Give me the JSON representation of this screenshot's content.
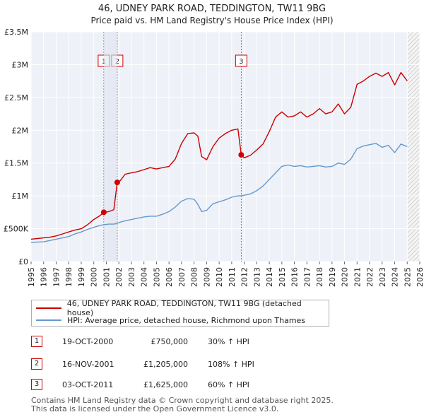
{
  "chart_data": {
    "type": "line",
    "title": "46, UDNEY PARK ROAD, TEDDINGTON, TW11 9BG",
    "subtitle": "Price paid vs. HM Land Registry's House Price Index (HPI)",
    "xlim": [
      1995,
      2026
    ],
    "ylim": [
      0,
      3500000
    ],
    "x_ticks": [
      "1995",
      "1996",
      "1997",
      "1998",
      "1999",
      "2000",
      "2001",
      "2002",
      "2003",
      "2004",
      "2005",
      "2006",
      "2007",
      "2008",
      "2009",
      "2010",
      "2011",
      "2012",
      "2013",
      "2014",
      "2015",
      "2016",
      "2017",
      "2018",
      "2019",
      "2020",
      "2021",
      "2022",
      "2023",
      "2024",
      "2025",
      "2026"
    ],
    "y_ticks": [
      {
        "value": 0,
        "label": "£0"
      },
      {
        "value": 500000,
        "label": "£500K"
      },
      {
        "value": 1000000,
        "label": "£1M"
      },
      {
        "value": 1500000,
        "label": "£1.5M"
      },
      {
        "value": 2000000,
        "label": "£2M"
      },
      {
        "value": 2500000,
        "label": "£2.5M"
      },
      {
        "value": 3000000,
        "label": "£3M"
      },
      {
        "value": 3500000,
        "label": "£3.5M"
      }
    ],
    "forecast_start": 2025.0,
    "series": [
      {
        "name": "46, UDNEY PARK ROAD, TEDDINGTON, TW11 9BG (detached house)",
        "color": "#cc0000",
        "x": [
          1995.0,
          1995.5,
          1996.0,
          1996.5,
          1997.0,
          1997.5,
          1998.0,
          1998.5,
          1999.0,
          1999.5,
          2000.0,
          2000.5,
          2000.8,
          2001.2,
          2001.6,
          2001.87,
          2002.1,
          2002.5,
          2003.0,
          2003.5,
          2004.0,
          2004.5,
          2005.0,
          2005.5,
          2006.0,
          2006.5,
          2007.0,
          2007.5,
          2008.0,
          2008.3,
          2008.6,
          2009.0,
          2009.5,
          2010.0,
          2010.5,
          2011.0,
          2011.5,
          2011.76,
          2012.0,
          2012.5,
          2013.0,
          2013.5,
          2014.0,
          2014.5,
          2015.0,
          2015.5,
          2016.0,
          2016.5,
          2017.0,
          2017.5,
          2018.0,
          2018.5,
          2019.0,
          2019.5,
          2020.0,
          2020.5,
          2021.0,
          2021.5,
          2022.0,
          2022.5,
          2023.0,
          2023.5,
          2024.0,
          2024.5,
          2025.0
        ],
        "y": [
          340000,
          350000,
          360000,
          370000,
          390000,
          420000,
          450000,
          480000,
          500000,
          560000,
          640000,
          700000,
          750000,
          760000,
          790000,
          1205000,
          1230000,
          1330000,
          1350000,
          1370000,
          1400000,
          1430000,
          1410000,
          1430000,
          1450000,
          1560000,
          1800000,
          1950000,
          1960000,
          1910000,
          1600000,
          1550000,
          1750000,
          1880000,
          1950000,
          2000000,
          2020000,
          1625000,
          1580000,
          1620000,
          1700000,
          1790000,
          1980000,
          2200000,
          2280000,
          2200000,
          2220000,
          2280000,
          2200000,
          2250000,
          2330000,
          2250000,
          2280000,
          2400000,
          2250000,
          2350000,
          2700000,
          2750000,
          2820000,
          2870000,
          2820000,
          2880000,
          2690000,
          2880000,
          2750000
        ]
      },
      {
        "name": "HPI: Average price, detached house, Richmond upon Thames",
        "color": "#6699cc",
        "x": [
          1995.0,
          1995.5,
          1996.0,
          1996.5,
          1997.0,
          1997.5,
          1998.0,
          1998.5,
          1999.0,
          1999.5,
          2000.0,
          2000.5,
          2000.8,
          2001.2,
          2001.6,
          2001.87,
          2002.1,
          2002.5,
          2003.0,
          2003.5,
          2004.0,
          2004.5,
          2005.0,
          2005.5,
          2006.0,
          2006.5,
          2007.0,
          2007.5,
          2008.0,
          2008.3,
          2008.6,
          2009.0,
          2009.5,
          2010.0,
          2010.5,
          2011.0,
          2011.5,
          2011.76,
          2012.0,
          2012.5,
          2013.0,
          2013.5,
          2014.0,
          2014.5,
          2015.0,
          2015.5,
          2016.0,
          2016.5,
          2017.0,
          2017.5,
          2018.0,
          2018.5,
          2019.0,
          2019.5,
          2020.0,
          2020.5,
          2021.0,
          2021.5,
          2022.0,
          2022.5,
          2023.0,
          2023.5,
          2024.0,
          2024.5,
          2025.0
        ],
        "y": [
          290000,
          295000,
          300000,
          320000,
          340000,
          360000,
          380000,
          420000,
          450000,
          490000,
          520000,
          550000,
          560000,
          570000,
          570000,
          580000,
          600000,
          620000,
          640000,
          660000,
          680000,
          690000,
          690000,
          720000,
          760000,
          830000,
          920000,
          960000,
          950000,
          870000,
          760000,
          780000,
          880000,
          910000,
          940000,
          980000,
          1000000,
          1000000,
          1010000,
          1030000,
          1080000,
          1150000,
          1250000,
          1350000,
          1450000,
          1470000,
          1450000,
          1460000,
          1440000,
          1450000,
          1460000,
          1440000,
          1450000,
          1500000,
          1480000,
          1560000,
          1720000,
          1760000,
          1780000,
          1800000,
          1740000,
          1770000,
          1660000,
          1790000,
          1750000
        ]
      }
    ],
    "transactions": [
      {
        "id": "1",
        "x": 2000.8,
        "y": 750000
      },
      {
        "id": "2",
        "x": 2001.87,
        "y": 1205000
      },
      {
        "id": "3",
        "x": 2011.76,
        "y": 1625000
      }
    ]
  },
  "legend": {
    "property_label": "46, UDNEY PARK ROAD, TEDDINGTON, TW11 9BG (detached house)",
    "hpi_label": "HPI: Average price, detached house, Richmond upon Thames"
  },
  "table": [
    {
      "id": "1",
      "date": "19-OCT-2000",
      "price": "£750,000",
      "hpi": "30% ↑ HPI"
    },
    {
      "id": "2",
      "date": "16-NOV-2001",
      "price": "£1,205,000",
      "hpi": "108% ↑ HPI"
    },
    {
      "id": "3",
      "date": "03-OCT-2011",
      "price": "£1,625,000",
      "hpi": "60% ↑ HPI"
    }
  ],
  "footer": {
    "line1": "Contains HM Land Registry data © Crown copyright and database right 2025.",
    "line2": "This data is licensed under the Open Government Licence v3.0."
  }
}
